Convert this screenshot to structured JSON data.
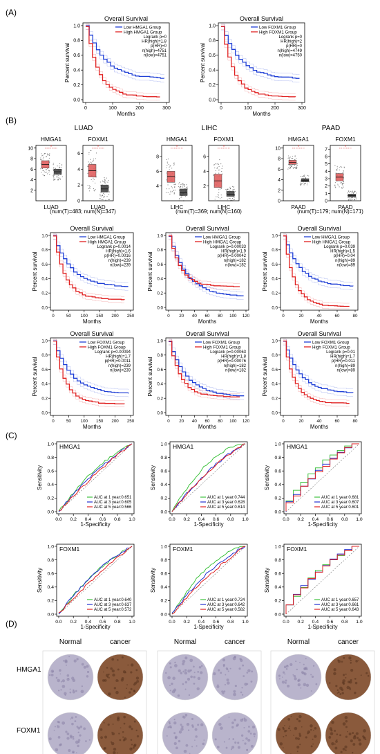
{
  "panels": {
    "A": "(A)",
    "B": "(B)",
    "C": "(C)",
    "D": "(D)"
  },
  "axis_text": {
    "percent_survival": "Percent survival",
    "months": "Months",
    "sensitivity": "Sensitivity",
    "specificity": "1-Specificity",
    "overall_survival": "Overall Survival"
  },
  "cancers": [
    "LUAD",
    "LIHC",
    "PAAD"
  ],
  "genes": [
    "HMGA1",
    "FOXM1"
  ],
  "colors": {
    "low": "#1f3fd6",
    "high": "#e02020",
    "auc1": "#3fc23f",
    "auc3": "#2430d0",
    "auc5": "#e02020",
    "box_tumor": "#e06060",
    "box_normal": "#444444",
    "tissue_light": "#b9b4cc",
    "tissue_dark": "#8a5a3c"
  },
  "section_a": [
    {
      "legend_low": "Low HMGA1 Group",
      "legend_high": "High HMGA1 Group",
      "stats": [
        "Logrank p=0",
        "HR(high)=1.8",
        "p(HR)=0",
        "n(high)=4751",
        "n(low)=4751"
      ],
      "xticks": [
        "0",
        "100",
        "200",
        "300"
      ],
      "yticks": [
        "0.0",
        "0.2",
        "0.4",
        "0.6",
        "0.8",
        "1.0"
      ],
      "xmax": 380
    },
    {
      "legend_low": "Low FOXM1 Group",
      "legend_high": "High FOXM1 Group",
      "stats": [
        "Logrank p=0",
        "HR(high)=2",
        "p(HR)=0",
        "n(high)=4749",
        "n(low)=4750"
      ],
      "xticks": [
        "0",
        "100",
        "200",
        "300"
      ],
      "yticks": [
        "0.0",
        "0.2",
        "0.4",
        "0.6",
        "0.8",
        "1.0"
      ],
      "xmax": 380
    }
  ],
  "section_b_box": [
    {
      "cancer": "LUAD",
      "n_text": "(num(T)=483; num(N)=347)",
      "plots": [
        {
          "gene": "HMGA1",
          "yticks": [
            "2",
            "4",
            "6",
            "8",
            "10"
          ],
          "ymin": 0,
          "ymax": 10.5,
          "tumor": [
            6.2,
            6.9,
            7.6
          ],
          "normal": [
            5.0,
            5.5,
            6.0
          ],
          "xlabel": "LUAD"
        },
        {
          "gene": "FOXM1",
          "yticks": [
            "0",
            "2",
            "4",
            "6"
          ],
          "ymin": 0,
          "ymax": 7,
          "tumor": [
            3.0,
            3.8,
            4.6
          ],
          "normal": [
            1.1,
            1.5,
            2.0
          ],
          "xlabel": "LUAD"
        }
      ]
    },
    {
      "cancer": "LIHC",
      "n_text": "(num(T)=369; num(N)=160)",
      "plots": [
        {
          "gene": "HMGA1",
          "yticks": [
            "4",
            "6",
            "8"
          ],
          "ymin": 2,
          "ymax": 9.5,
          "tumor": [
            4.5,
            5.3,
            6.0
          ],
          "normal": [
            2.7,
            3.1,
            3.6
          ],
          "xlabel": "LIHC"
        },
        {
          "gene": "FOXM1",
          "yticks": [
            "2",
            "4",
            "6"
          ],
          "ymin": 0,
          "ymax": 7.5,
          "tumor": [
            1.8,
            2.7,
            3.6
          ],
          "normal": [
            0.6,
            0.9,
            1.3
          ],
          "xlabel": "LIHC"
        }
      ]
    },
    {
      "cancer": "PAAD",
      "n_text": "(num(T)=179; num(N)=171)",
      "plots": [
        {
          "gene": "HMGA1",
          "yticks": [
            "0",
            "2",
            "4",
            "6",
            "8",
            "10"
          ],
          "ymin": 0,
          "ymax": 10.5,
          "tumor": [
            6.9,
            7.3,
            7.7
          ],
          "normal": [
            3.6,
            3.9,
            4.2
          ],
          "xlabel": "PAAD"
        },
        {
          "gene": "FOXM1",
          "yticks": [
            "0",
            "1",
            "2",
            "3",
            "4",
            "5",
            "6",
            "7"
          ],
          "ymin": 0,
          "ymax": 7.5,
          "tumor": [
            2.7,
            3.2,
            3.7
          ],
          "normal": [
            0.5,
            0.7,
            0.9
          ],
          "xlabel": "PAAD"
        }
      ]
    }
  ],
  "section_b_km": [
    {
      "legend_low": "Low HMGA1 Group",
      "legend_high": "High HMGA1 Group",
      "stats": [
        "Logrank p=0.0014",
        "HR(high)=1.6",
        "p(HR)=0.0016",
        "n(high)=239",
        "n(low)=239"
      ],
      "xticks": [
        "0",
        "50",
        "100",
        "150",
        "200",
        "250"
      ],
      "xmax": 250,
      "low_final": 0.29,
      "high_final": 0.12
    },
    {
      "legend_low": "Low HMGA1 Group",
      "legend_high": "High HMGA1 Group",
      "stats": [
        "Logrank p=0.00033",
        "HR(high)=1.9",
        "p(HR)=0.00042",
        "n(high)=182",
        "n(low)=182"
      ],
      "xticks": [
        "0",
        "20",
        "40",
        "60",
        "80",
        "100",
        "120"
      ],
      "xmax": 125,
      "low_final": 0.16,
      "high_final": 0.3
    },
    {
      "legend_low": "Low HMGA1 Group",
      "legend_high": "High HMGA1 Group",
      "stats": [
        "Logrank p=0.039",
        "HR(high)=1.5",
        "p(HR)=0.04",
        "n(high)=89",
        "n(low)=89"
      ],
      "xticks": [
        "0",
        "20",
        "40",
        "60",
        "80"
      ],
      "xmax": 95,
      "low_final": 0.3,
      "high_final": 0.02
    },
    {
      "legend_low": "Low FOXM1 Group",
      "legend_high": "High FOXM1 Group",
      "stats": [
        "Logrank p=0.00094",
        "HR(high)=1.7",
        "p(HR)=0.0011",
        "n(high)=239",
        "n(low)=239"
      ],
      "xticks": [
        "0",
        "50",
        "100",
        "150",
        "200",
        "250"
      ],
      "xmax": 250,
      "low_final": 0.27,
      "high_final": 0.13
    },
    {
      "legend_low": "Low FOXM1 Group",
      "legend_high": "High FOXM1 Group",
      "stats": [
        "Logrank p=0.00063",
        "HR(high)=1.8",
        "p(HR)=0.00076",
        "n(high)=182",
        "n(low)=182"
      ],
      "xticks": [
        "0",
        "20",
        "40",
        "60",
        "80",
        "100",
        "120"
      ],
      "xmax": 125,
      "low_final": 0.23,
      "high_final": 0.23
    },
    {
      "legend_low": "Low FOXM1 Group",
      "legend_high": "High FOXM1 Group",
      "stats": [
        "Logrank p=0.01",
        "HR(high)=1.7",
        "p(HR)=0.011",
        "n(high)=89",
        "n(low)=89"
      ],
      "xticks": [
        "0",
        "20",
        "40",
        "60",
        "80"
      ],
      "xmax": 80,
      "low_final": 0.28,
      "high_final": 0.14
    }
  ],
  "section_c": [
    {
      "gene": "HMGA1",
      "auc": [
        "AUC at 1 year:0.651",
        "AUC at 3 year:0.605",
        "AUC at 5 year:0.566"
      ],
      "style": "smooth",
      "bulge": [
        0.12,
        0.08,
        0.05
      ]
    },
    {
      "gene": "HMGA1",
      "auc": [
        "AUC at 1 year:0.744",
        "AUC at 3 year:0.628",
        "AUC at 5 year:0.614"
      ],
      "style": "smooth",
      "bulge": [
        0.22,
        0.1,
        0.09
      ]
    },
    {
      "gene": "HMGA1",
      "auc": [
        "AUC at 1 year:0.681",
        "AUC at 3 year:0.607",
        "AUC at 5 year:0.601"
      ],
      "style": "step",
      "bulge": [
        0.15,
        0.09,
        0.08
      ]
    },
    {
      "gene": "FOXM1",
      "auc": [
        "AUC at 1 year:0.640",
        "AUC at 3 year:0.637",
        "AUC at 5 year:0.572"
      ],
      "style": "smooth",
      "bulge": [
        0.11,
        0.11,
        0.05
      ]
    },
    {
      "gene": "FOXM1",
      "auc": [
        "AUC at 1 year:0.724",
        "AUC at 3 year:0.642",
        "AUC at 5 year:0.582"
      ],
      "style": "smooth",
      "bulge": [
        0.2,
        0.12,
        0.06
      ]
    },
    {
      "gene": "FOXM1",
      "auc": [
        "AUC at 1 year:0.657",
        "AUC at 3 year:0.661",
        "AUC at 5 year:0.643"
      ],
      "style": "step",
      "bulge": [
        0.13,
        0.13,
        0.11
      ]
    }
  ],
  "section_d": {
    "col_labels": [
      "Normal",
      "cancer"
    ],
    "row_labels": [
      "HMGA1",
      "FOXM1"
    ],
    "tissue": [
      [
        "light",
        "dark",
        "light",
        "light",
        "light",
        "dark"
      ],
      [
        "light",
        "dark",
        "light",
        "light",
        "dark",
        "dark"
      ]
    ]
  },
  "chart_data": [
    {
      "type": "line",
      "title": "Overall Survival",
      "xlabel": "Months",
      "ylabel": "Percent survival",
      "ylim": [
        0,
        1
      ],
      "series": [
        {
          "name": "Low HMGA1 Group",
          "final": 0.29
        },
        {
          "name": "High HMGA1 Group",
          "final": 0.05
        }
      ],
      "annotations": [
        "Logrank p=0",
        "HR(high)=1.8",
        "p(HR)=0",
        "n(high)=4751",
        "n(low)=4751"
      ]
    },
    {
      "type": "line",
      "title": "Overall Survival",
      "xlabel": "Months",
      "ylabel": "Percent survival",
      "ylim": [
        0,
        1
      ],
      "series": [
        {
          "name": "Low FOXM1 Group",
          "final": 0.15
        },
        {
          "name": "High FOXM1 Group",
          "final": 0.1
        }
      ],
      "annotations": [
        "Logrank p=0",
        "HR(high)=2",
        "p(HR)=0",
        "n(high)=4749",
        "n(low)=4750"
      ]
    },
    {
      "type": "line",
      "title": "",
      "xlabel": "1-Specificity",
      "ylabel": "Sensitivity",
      "ylim": [
        0,
        1
      ],
      "series": [
        {
          "name": "AUC at 1 year:0.651"
        },
        {
          "name": "AUC at 3 year:0.605"
        },
        {
          "name": "AUC at 5 year:0.566"
        }
      ]
    }
  ]
}
